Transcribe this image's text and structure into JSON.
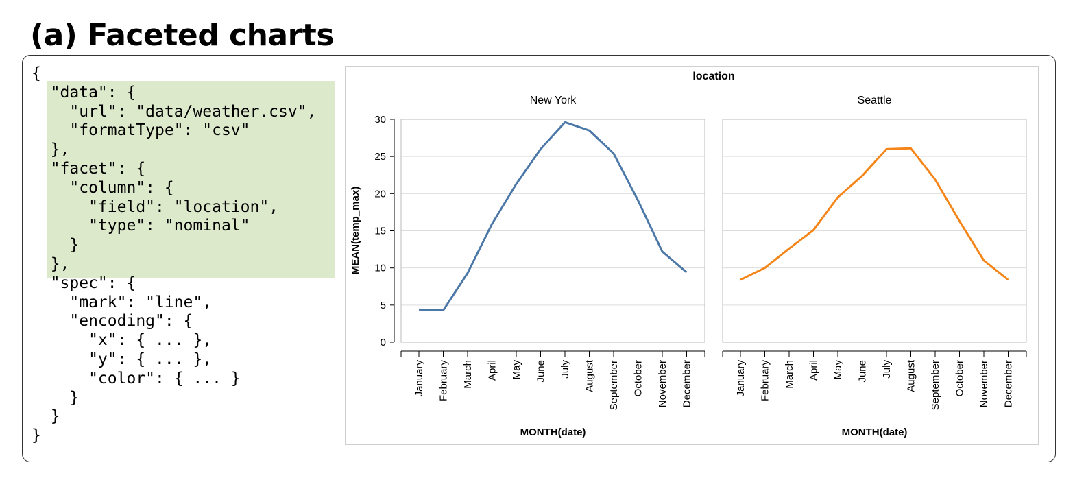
{
  "heading": "(a) Faceted charts",
  "code_lines": [
    "{",
    "  \"data\": {",
    "    \"url\": \"data/weather.csv\",",
    "    \"formatType\": \"csv\"",
    "  },",
    "  \"facet\": {",
    "    \"column\": {",
    "      \"field\": \"location\",",
    "      \"type\": \"nominal\"",
    "    }",
    "  },",
    "  \"spec\": {",
    "    \"mark\": \"line\",",
    "    \"encoding\": {",
    "      \"x\": { ... },",
    "      \"y\": { ... },",
    "      \"color\": { ... }",
    "    }",
    "  }",
    "}"
  ],
  "highlight_color": "#dde9cb",
  "chart_data": {
    "type": "line",
    "facet_title": "location",
    "ylabel": "MEAN(temp_max)",
    "xlabel": "MONTH(date)",
    "ylim": [
      0,
      30
    ],
    "yticks": [
      0,
      5,
      10,
      15,
      20,
      25,
      30
    ],
    "grid": true,
    "categories": [
      "January",
      "February",
      "March",
      "April",
      "May",
      "June",
      "July",
      "August",
      "September",
      "October",
      "November",
      "December"
    ],
    "facets": [
      {
        "title": "New York",
        "color": "#4c78a8",
        "values": [
          4.4,
          4.3,
          9.3,
          15.9,
          21.3,
          26.0,
          29.6,
          28.5,
          25.4,
          19.1,
          12.2,
          9.4
        ]
      },
      {
        "title": "Seattle",
        "color": "#f58518",
        "values": [
          8.4,
          10.0,
          12.6,
          15.1,
          19.5,
          22.4,
          26.0,
          26.1,
          21.9,
          16.3,
          11.0,
          8.4
        ]
      }
    ]
  }
}
